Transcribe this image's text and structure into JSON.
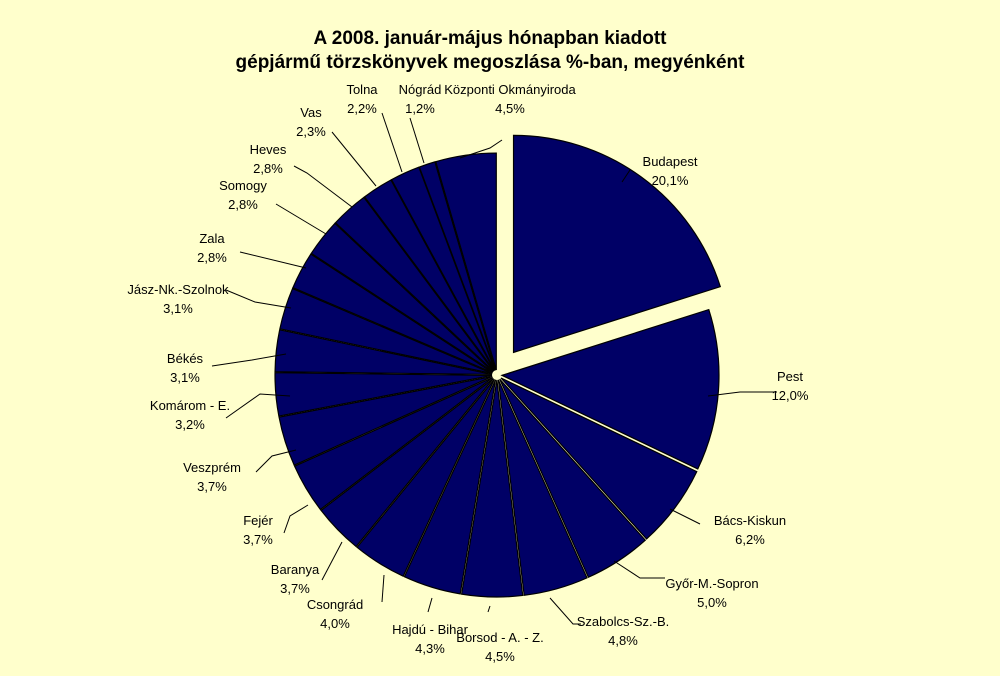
{
  "colors": {
    "background": "#ffffcc",
    "slice_fill": "#000066",
    "text": "#000000"
  },
  "chart_data": {
    "type": "pie",
    "title_lines": [
      "A  2008. január-május hónapban kiadott",
      "gépjármű törzskönyvek megoszlása %-ban, megyénként"
    ],
    "unit": "%",
    "exploded": true,
    "slices": [
      {
        "label": "Budapest",
        "value": 20.1,
        "display": "20,1%"
      },
      {
        "label": "Pest",
        "value": 12.0,
        "display": "12,0%"
      },
      {
        "label": "Bács-Kiskun",
        "value": 6.2,
        "display": "6,2%"
      },
      {
        "label": "Győr-M.-Sopron",
        "value": 5.0,
        "display": "5,0%"
      },
      {
        "label": "Szabolcs-Sz.-B.",
        "value": 4.8,
        "display": "4,8%"
      },
      {
        "label": "Borsod - A. - Z.",
        "value": 4.5,
        "display": "4,5%"
      },
      {
        "label": "Hajdú - Bihar",
        "value": 4.3,
        "display": "4,3%"
      },
      {
        "label": "Csongrád",
        "value": 4.0,
        "display": "4,0%"
      },
      {
        "label": "Baranya",
        "value": 3.7,
        "display": "3,7%"
      },
      {
        "label": "Fejér",
        "value": 3.7,
        "display": "3,7%"
      },
      {
        "label": "Veszprém",
        "value": 3.7,
        "display": "3,7%"
      },
      {
        "label": "Komárom - E.",
        "value": 3.2,
        "display": "3,2%"
      },
      {
        "label": "Békés",
        "value": 3.1,
        "display": "3,1%"
      },
      {
        "label": "Jász-Nk.-Szolnok",
        "value": 3.1,
        "display": "3,1%"
      },
      {
        "label": "Zala",
        "value": 2.8,
        "display": "2,8%"
      },
      {
        "label": "Somogy",
        "value": 2.8,
        "display": "2,8%"
      },
      {
        "label": "Heves",
        "value": 2.8,
        "display": "2,8%"
      },
      {
        "label": "Vas",
        "value": 2.3,
        "display": "2,3%"
      },
      {
        "label": "Tolna",
        "value": 2.2,
        "display": "2,2%"
      },
      {
        "label": "Nógrád",
        "value": 1.2,
        "display": "1,2%"
      },
      {
        "label": "Központi Okmányiroda",
        "value": 4.5,
        "display": "4,5%"
      }
    ]
  }
}
